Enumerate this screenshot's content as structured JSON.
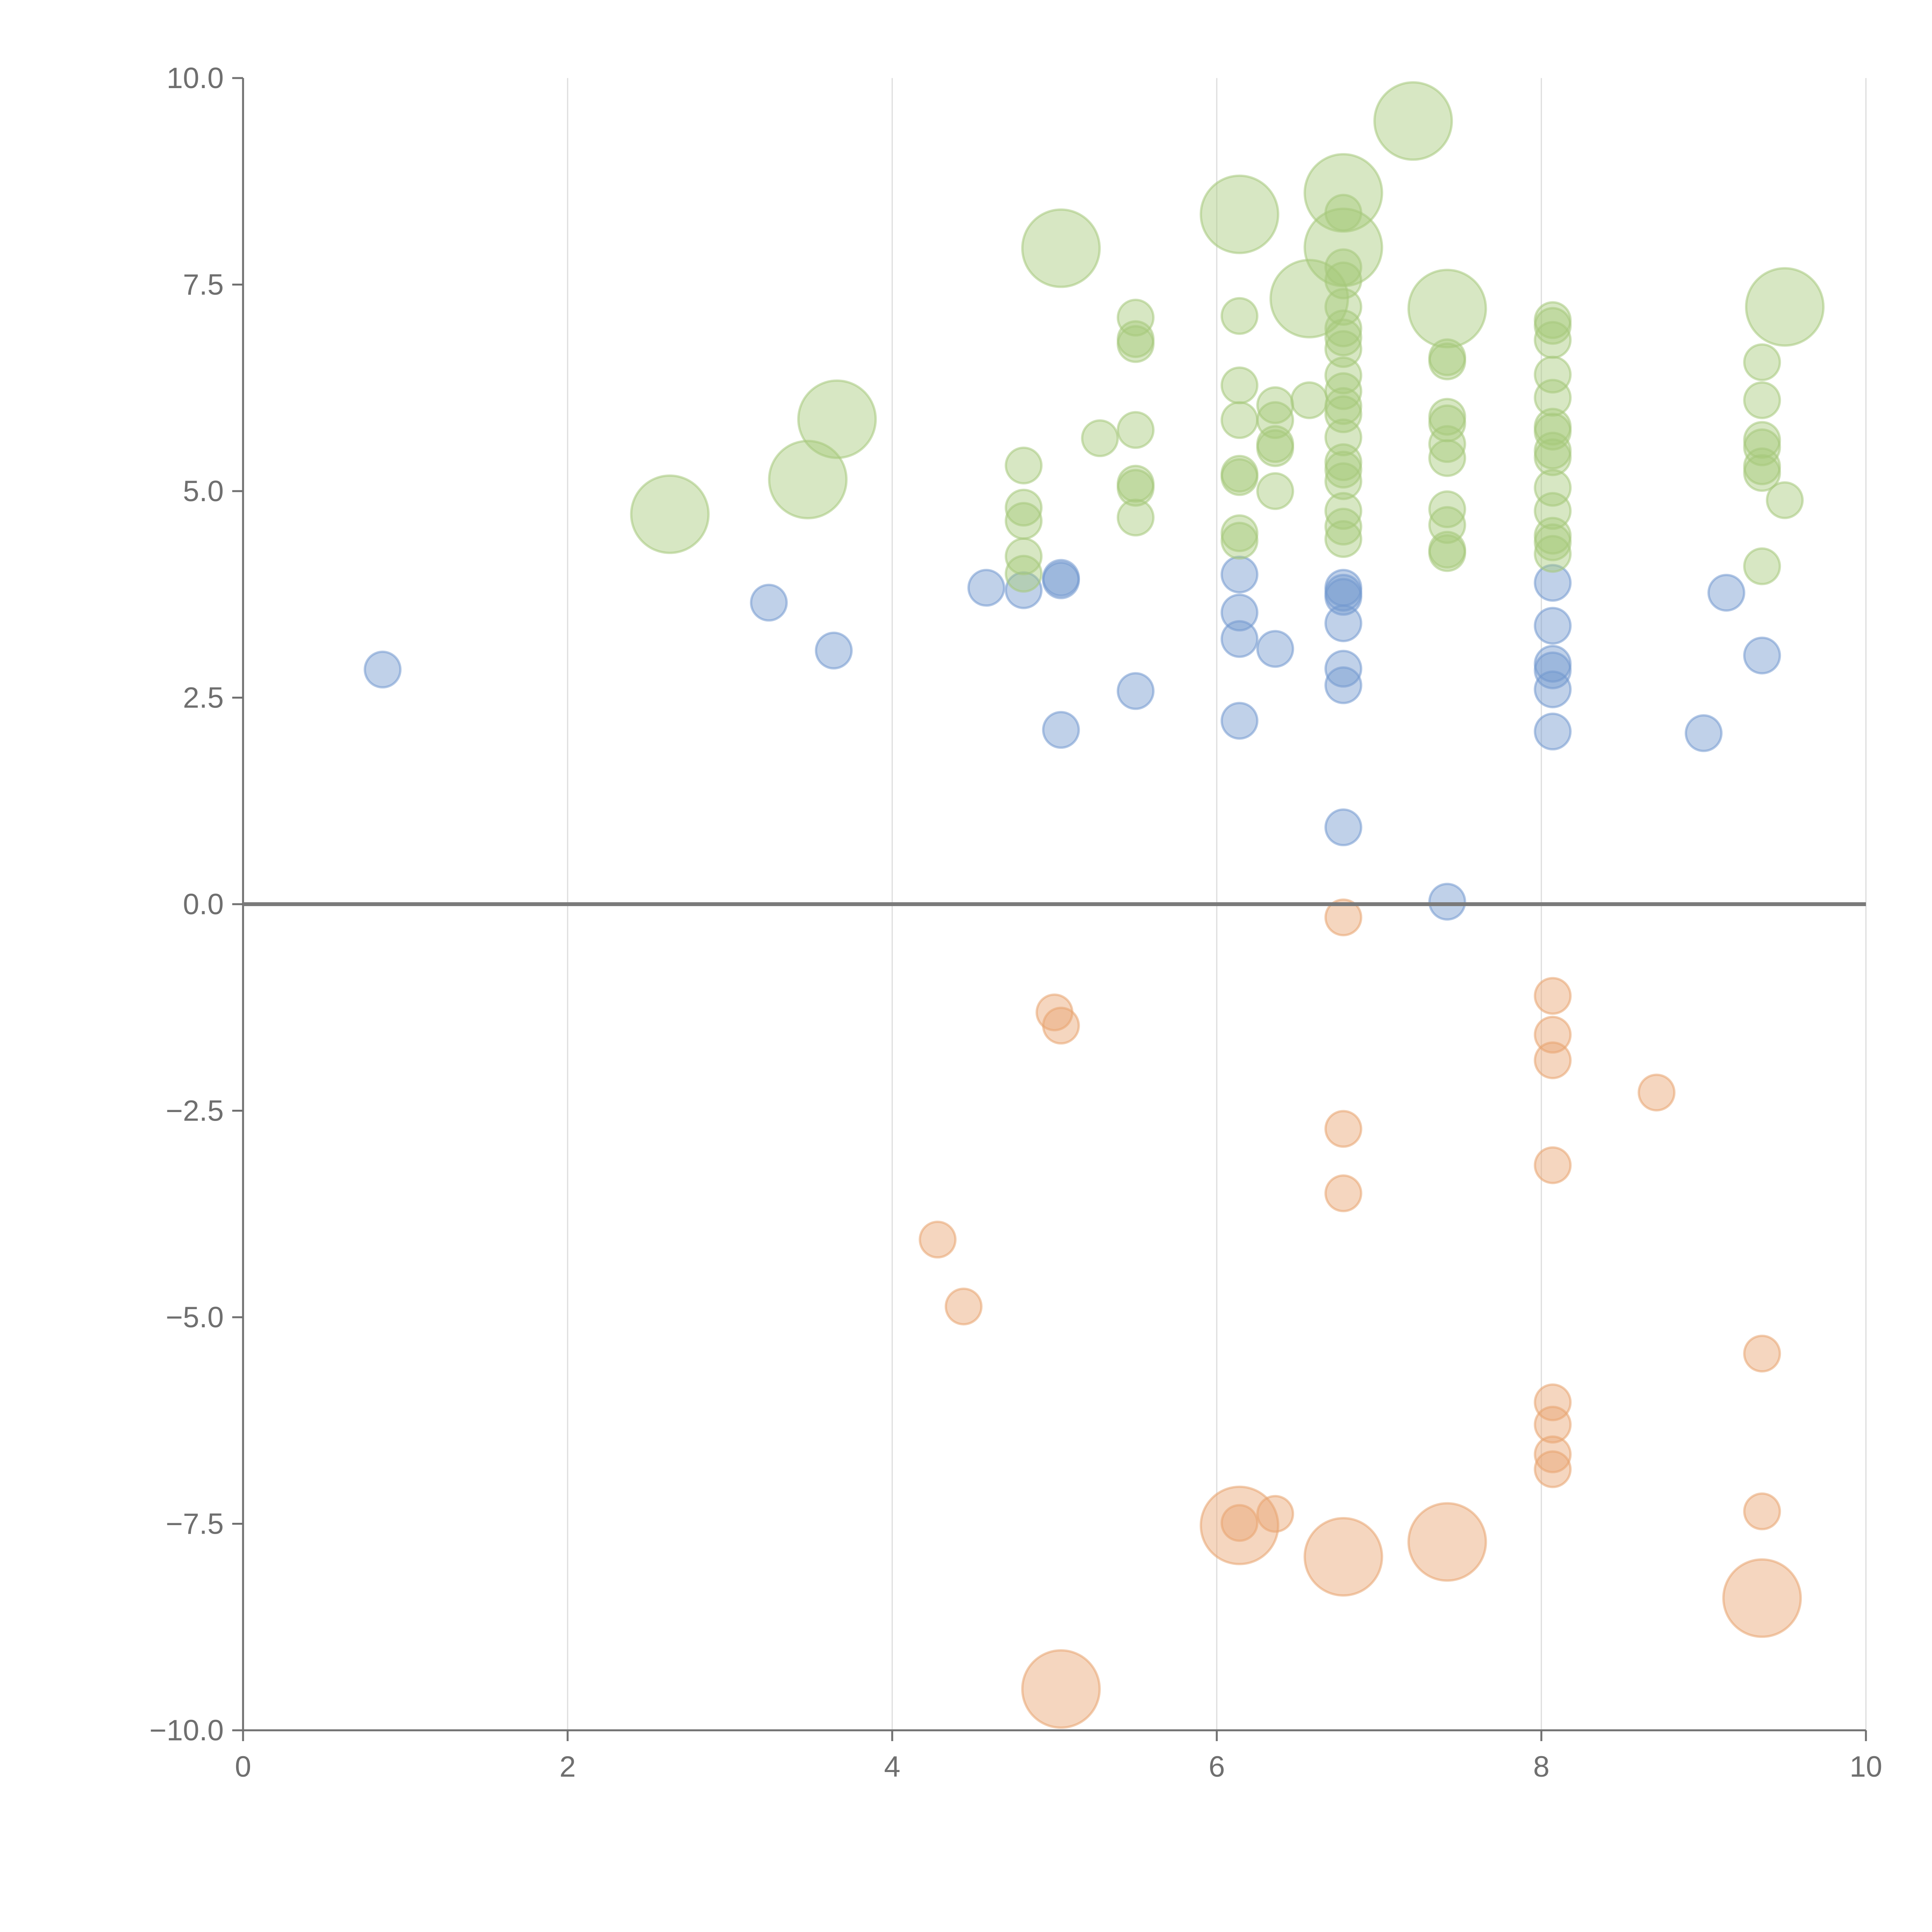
{
  "chart_data": {
    "type": "scatter",
    "title": "",
    "xlabel": "",
    "ylabel": "",
    "xlim": [
      0,
      10
    ],
    "ylim": [
      -10,
      10
    ],
    "x_ticks": [
      "0",
      "2",
      "4",
      "6",
      "8",
      "10"
    ],
    "y_ticks": [
      "10.0",
      "7.5",
      "5.0",
      "2.5",
      "0.0",
      "−2.5",
      "−5.0",
      "−7.5",
      "−10.0"
    ],
    "grid": "vertical",
    "zero_line": true,
    "series": [
      {
        "color": "#7399cf",
        "points": [
          {
            "x": 0.86,
            "y": 2.84,
            "size": 1
          },
          {
            "x": 3.24,
            "y": 3.65,
            "size": 1
          },
          {
            "x": 3.64,
            "y": 3.07,
            "size": 1
          },
          {
            "x": 4.58,
            "y": 3.83,
            "size": 1
          },
          {
            "x": 4.81,
            "y": 3.8,
            "size": 1
          },
          {
            "x": 5.04,
            "y": 3.92,
            "size": 1
          },
          {
            "x": 5.04,
            "y": 3.95,
            "size": 1
          },
          {
            "x": 5.04,
            "y": 2.11,
            "size": 1
          },
          {
            "x": 5.5,
            "y": 2.58,
            "size": 1
          },
          {
            "x": 6.14,
            "y": 3.99,
            "size": 1
          },
          {
            "x": 6.14,
            "y": 3.53,
            "size": 1
          },
          {
            "x": 6.14,
            "y": 3.21,
            "size": 1
          },
          {
            "x": 6.14,
            "y": 2.22,
            "size": 1
          },
          {
            "x": 6.36,
            "y": 3.09,
            "size": 1
          },
          {
            "x": 6.78,
            "y": 3.83,
            "size": 1
          },
          {
            "x": 6.78,
            "y": 3.72,
            "size": 1
          },
          {
            "x": 6.78,
            "y": 3.77,
            "size": 1
          },
          {
            "x": 6.78,
            "y": 3.4,
            "size": 1
          },
          {
            "x": 6.78,
            "y": 2.85,
            "size": 1
          },
          {
            "x": 6.78,
            "y": 2.65,
            "size": 1
          },
          {
            "x": 6.78,
            "y": 0.93,
            "size": 1
          },
          {
            "x": 7.42,
            "y": 0.03,
            "size": 1
          },
          {
            "x": 8.07,
            "y": 3.89,
            "size": 1
          },
          {
            "x": 8.07,
            "y": 3.37,
            "size": 1
          },
          {
            "x": 8.07,
            "y": 2.91,
            "size": 1
          },
          {
            "x": 8.07,
            "y": 2.83,
            "size": 1
          },
          {
            "x": 8.07,
            "y": 2.6,
            "size": 1
          },
          {
            "x": 8.07,
            "y": 2.09,
            "size": 1
          },
          {
            "x": 9.0,
            "y": 2.07,
            "size": 1
          },
          {
            "x": 9.14,
            "y": 3.77,
            "size": 1
          },
          {
            "x": 9.36,
            "y": 3.01,
            "size": 1
          }
        ]
      },
      {
        "color": "#e8a470",
        "points": [
          {
            "x": 6.78,
            "y": -0.16,
            "size": 1
          },
          {
            "x": 5.0,
            "y": -1.31,
            "size": 1
          },
          {
            "x": 5.04,
            "y": -1.47,
            "size": 1
          },
          {
            "x": 8.07,
            "y": -1.11,
            "size": 1
          },
          {
            "x": 8.07,
            "y": -1.58,
            "size": 1
          },
          {
            "x": 8.07,
            "y": -1.89,
            "size": 1
          },
          {
            "x": 8.71,
            "y": -2.28,
            "size": 1
          },
          {
            "x": 6.78,
            "y": -2.72,
            "size": 1
          },
          {
            "x": 8.07,
            "y": -3.16,
            "size": 1
          },
          {
            "x": 6.78,
            "y": -3.5,
            "size": 1
          },
          {
            "x": 4.28,
            "y": -4.06,
            "size": 1
          },
          {
            "x": 4.44,
            "y": -4.87,
            "size": 1
          },
          {
            "x": 9.36,
            "y": -5.44,
            "size": 1
          },
          {
            "x": 8.07,
            "y": -6.03,
            "size": 1
          },
          {
            "x": 8.07,
            "y": -6.3,
            "size": 1
          },
          {
            "x": 8.07,
            "y": -6.66,
            "size": 1
          },
          {
            "x": 8.07,
            "y": -6.84,
            "size": 1
          },
          {
            "x": 6.14,
            "y": -7.49,
            "size": 1
          },
          {
            "x": 6.36,
            "y": -7.38,
            "size": 1
          },
          {
            "x": 9.36,
            "y": -7.35,
            "size": 1
          },
          {
            "x": 6.14,
            "y": -7.52,
            "size": 3
          },
          {
            "x": 6.78,
            "y": -7.9,
            "size": 3
          },
          {
            "x": 7.42,
            "y": -7.72,
            "size": 3
          },
          {
            "x": 9.36,
            "y": -8.4,
            "size": 3
          },
          {
            "x": 5.04,
            "y": -9.5,
            "size": 3
          }
        ]
      },
      {
        "color": "#a6c97b",
        "points": [
          {
            "x": 2.63,
            "y": 4.72,
            "size": 3
          },
          {
            "x": 3.48,
            "y": 5.14,
            "size": 3
          },
          {
            "x": 3.66,
            "y": 5.87,
            "size": 3
          },
          {
            "x": 5.04,
            "y": 7.94,
            "size": 3
          },
          {
            "x": 6.14,
            "y": 8.35,
            "size": 3
          },
          {
            "x": 6.57,
            "y": 7.33,
            "size": 3
          },
          {
            "x": 6.78,
            "y": 8.61,
            "size": 3
          },
          {
            "x": 6.78,
            "y": 7.95,
            "size": 3
          },
          {
            "x": 7.21,
            "y": 9.48,
            "size": 3
          },
          {
            "x": 7.42,
            "y": 7.21,
            "size": 3
          },
          {
            "x": 9.5,
            "y": 7.23,
            "size": 3
          },
          {
            "x": 4.81,
            "y": 5.31,
            "size": 1
          },
          {
            "x": 4.81,
            "y": 4.8,
            "size": 1
          },
          {
            "x": 4.81,
            "y": 4.64,
            "size": 1
          },
          {
            "x": 4.81,
            "y": 4.21,
            "size": 1
          },
          {
            "x": 4.81,
            "y": 4.0,
            "size": 1
          },
          {
            "x": 5.28,
            "y": 5.64,
            "size": 1
          },
          {
            "x": 5.5,
            "y": 7.1,
            "size": 1
          },
          {
            "x": 5.5,
            "y": 6.84,
            "size": 1
          },
          {
            "x": 5.5,
            "y": 6.78,
            "size": 1
          },
          {
            "x": 5.5,
            "y": 5.74,
            "size": 1
          },
          {
            "x": 5.5,
            "y": 5.09,
            "size": 1
          },
          {
            "x": 5.5,
            "y": 5.04,
            "size": 1
          },
          {
            "x": 5.5,
            "y": 4.68,
            "size": 1
          },
          {
            "x": 6.14,
            "y": 7.12,
            "size": 1
          },
          {
            "x": 6.14,
            "y": 6.28,
            "size": 1
          },
          {
            "x": 6.14,
            "y": 5.86,
            "size": 1
          },
          {
            "x": 6.14,
            "y": 5.21,
            "size": 1
          },
          {
            "x": 6.14,
            "y": 5.17,
            "size": 1
          },
          {
            "x": 6.14,
            "y": 4.49,
            "size": 1
          },
          {
            "x": 6.14,
            "y": 4.4,
            "size": 1
          },
          {
            "x": 6.36,
            "y": 6.04,
            "size": 1
          },
          {
            "x": 6.36,
            "y": 5.86,
            "size": 1
          },
          {
            "x": 6.36,
            "y": 5.57,
            "size": 1
          },
          {
            "x": 6.36,
            "y": 5.52,
            "size": 1
          },
          {
            "x": 6.36,
            "y": 5.0,
            "size": 1
          },
          {
            "x": 6.57,
            "y": 6.1,
            "size": 1
          },
          {
            "x": 6.78,
            "y": 8.37,
            "size": 1
          },
          {
            "x": 6.78,
            "y": 7.71,
            "size": 1
          },
          {
            "x": 6.78,
            "y": 7.55,
            "size": 1
          },
          {
            "x": 6.78,
            "y": 7.23,
            "size": 1
          },
          {
            "x": 6.78,
            "y": 6.97,
            "size": 1
          },
          {
            "x": 6.78,
            "y": 6.86,
            "size": 1
          },
          {
            "x": 6.78,
            "y": 6.72,
            "size": 1
          },
          {
            "x": 6.78,
            "y": 6.4,
            "size": 1
          },
          {
            "x": 6.78,
            "y": 6.21,
            "size": 1
          },
          {
            "x": 6.78,
            "y": 6.03,
            "size": 1
          },
          {
            "x": 6.78,
            "y": 5.93,
            "size": 1
          },
          {
            "x": 6.78,
            "y": 5.65,
            "size": 1
          },
          {
            "x": 6.78,
            "y": 5.35,
            "size": 1
          },
          {
            "x": 6.78,
            "y": 5.26,
            "size": 1
          },
          {
            "x": 6.78,
            "y": 5.12,
            "size": 1
          },
          {
            "x": 6.78,
            "y": 4.76,
            "size": 1
          },
          {
            "x": 6.78,
            "y": 4.57,
            "size": 1
          },
          {
            "x": 6.78,
            "y": 4.42,
            "size": 1
          },
          {
            "x": 7.42,
            "y": 6.62,
            "size": 1
          },
          {
            "x": 7.42,
            "y": 6.57,
            "size": 1
          },
          {
            "x": 7.42,
            "y": 5.9,
            "size": 1
          },
          {
            "x": 7.42,
            "y": 5.82,
            "size": 1
          },
          {
            "x": 7.42,
            "y": 5.57,
            "size": 1
          },
          {
            "x": 7.42,
            "y": 5.4,
            "size": 1
          },
          {
            "x": 7.42,
            "y": 4.78,
            "size": 1
          },
          {
            "x": 7.42,
            "y": 4.59,
            "size": 1
          },
          {
            "x": 7.42,
            "y": 4.29,
            "size": 1
          },
          {
            "x": 7.42,
            "y": 4.25,
            "size": 1
          },
          {
            "x": 8.07,
            "y": 7.07,
            "size": 1
          },
          {
            "x": 8.07,
            "y": 7.0,
            "size": 1
          },
          {
            "x": 8.07,
            "y": 6.83,
            "size": 1
          },
          {
            "x": 8.07,
            "y": 6.41,
            "size": 1
          },
          {
            "x": 8.07,
            "y": 6.13,
            "size": 1
          },
          {
            "x": 8.07,
            "y": 5.78,
            "size": 1
          },
          {
            "x": 8.07,
            "y": 5.72,
            "size": 1
          },
          {
            "x": 8.07,
            "y": 5.49,
            "size": 1
          },
          {
            "x": 8.07,
            "y": 5.41,
            "size": 1
          },
          {
            "x": 8.07,
            "y": 5.04,
            "size": 1
          },
          {
            "x": 8.07,
            "y": 4.76,
            "size": 1
          },
          {
            "x": 8.07,
            "y": 4.46,
            "size": 1
          },
          {
            "x": 8.07,
            "y": 4.38,
            "size": 1
          },
          {
            "x": 8.07,
            "y": 4.24,
            "size": 1
          },
          {
            "x": 9.36,
            "y": 6.56,
            "size": 1
          },
          {
            "x": 9.36,
            "y": 6.1,
            "size": 1
          },
          {
            "x": 9.36,
            "y": 5.62,
            "size": 1
          },
          {
            "x": 9.36,
            "y": 5.53,
            "size": 1
          },
          {
            "x": 9.36,
            "y": 5.3,
            "size": 1
          },
          {
            "x": 9.36,
            "y": 5.22,
            "size": 1
          },
          {
            "x": 9.36,
            "y": 4.09,
            "size": 1
          },
          {
            "x": 9.5,
            "y": 4.89,
            "size": 1
          }
        ]
      }
    ]
  }
}
